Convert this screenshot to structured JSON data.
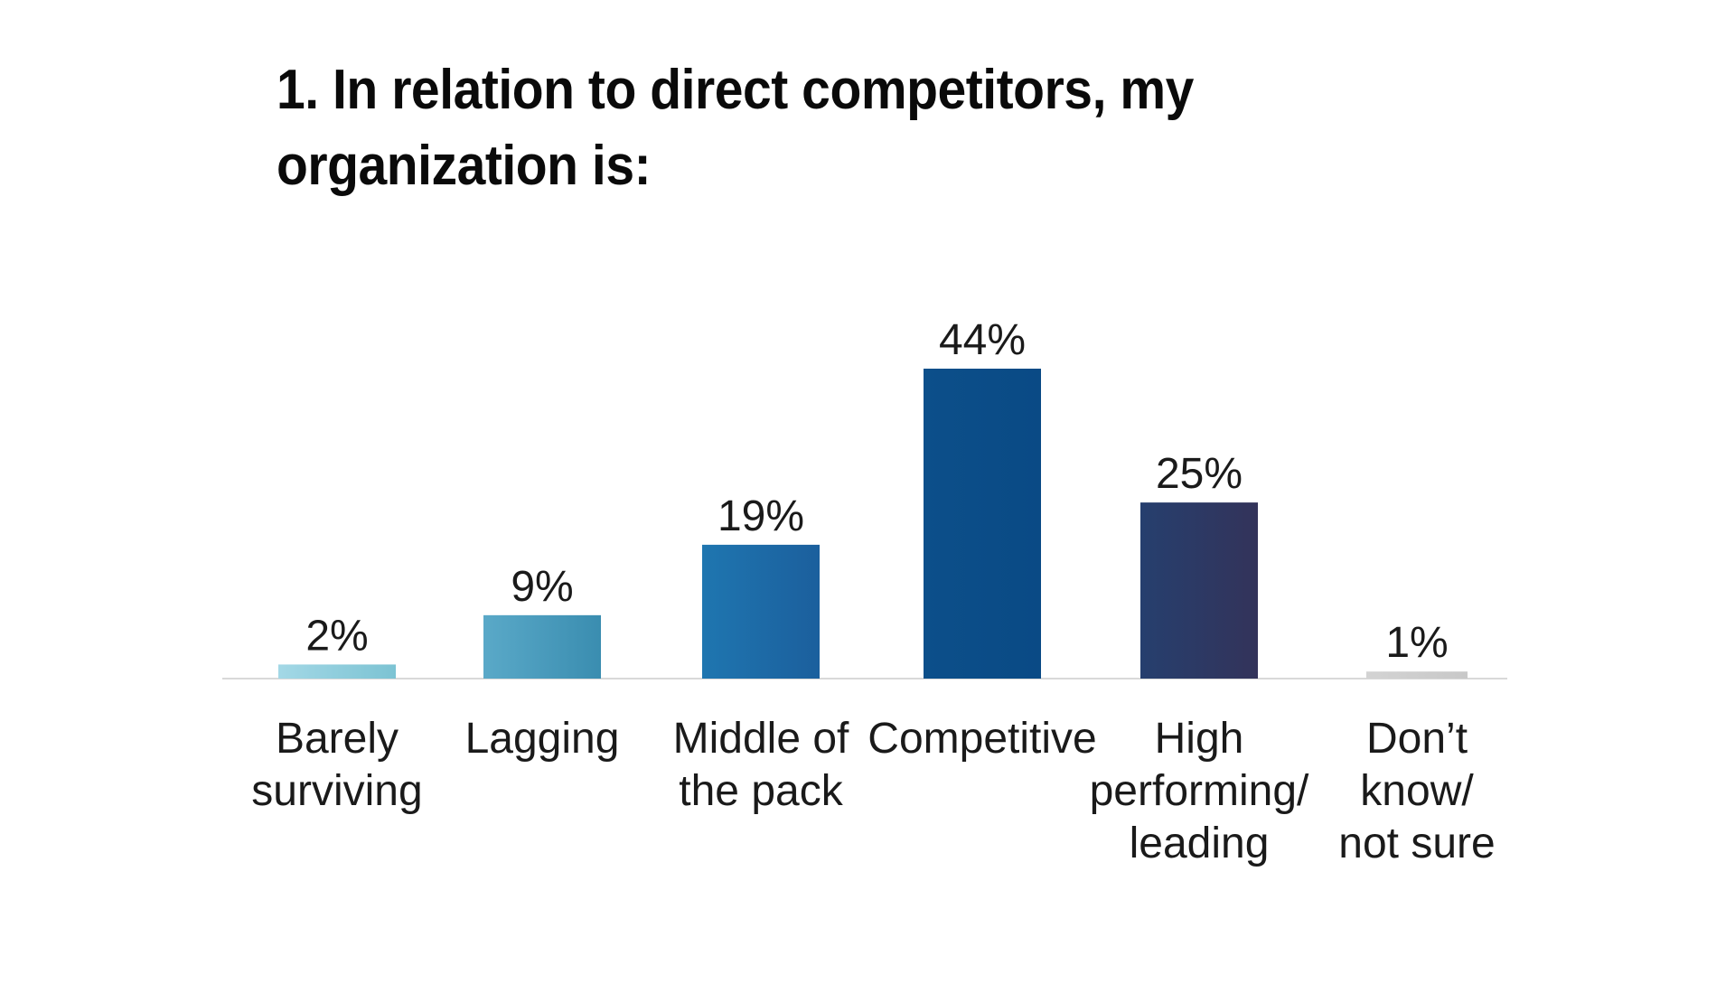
{
  "chart_data": {
    "type": "bar",
    "title": "1. In relation to direct competitors, my organization is:",
    "categories": [
      [
        "Barely",
        "surviving"
      ],
      [
        "Lagging"
      ],
      [
        "Middle of",
        "the pack"
      ],
      [
        "Competitive"
      ],
      [
        "High",
        "performing/",
        "leading"
      ],
      [
        "Don’t",
        "know/",
        "not sure"
      ]
    ],
    "values": [
      2,
      9,
      19,
      44,
      25,
      1
    ],
    "value_labels": [
      "2%",
      "9%",
      "19%",
      "44%",
      "25%",
      "1%"
    ],
    "ylim": [
      0,
      44
    ],
    "grid": false,
    "legend": "none",
    "bar_colors": [
      [
        "#a3d8e6",
        "#7cc3d3"
      ],
      [
        "#5aa9c8",
        "#3a8db0"
      ],
      [
        "#1f76b0",
        "#1b5f9d"
      ],
      [
        "#0c4f8a",
        "#0a4a85"
      ],
      [
        "#263f6e",
        "#33335a"
      ],
      [
        "#d3d3d3",
        "#c8c8c8"
      ]
    ],
    "axis_color": "#d9d9d9"
  }
}
